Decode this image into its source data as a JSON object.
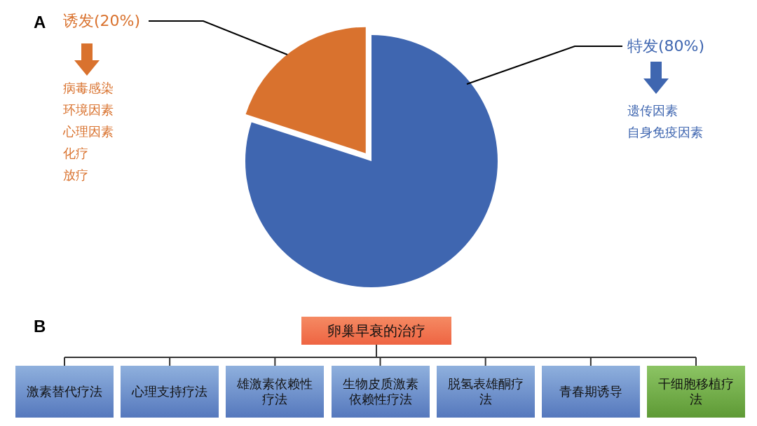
{
  "chart_data": [
    {
      "type": "pie",
      "categories": [
        "诱发(20%)",
        "特发(80%)"
      ],
      "values": [
        20,
        80
      ],
      "colors": [
        "#d9722e",
        "#3f66b0"
      ],
      "annotations": [
        "A",
        "病毒感染",
        "环境因素",
        "心理因素",
        "化疗",
        "放疗",
        "遗传因素",
        "自身免疫因素"
      ]
    },
    {
      "type": "other",
      "title": "卵巢早衰的治疗",
      "categories": [
        "激素替代疗法",
        "心理支持疗法",
        "雄激素依赖性疗法",
        "生物皮质激素依赖性疗法",
        "脱氢表雄酮疗法",
        "青春期诱导",
        "干细胞移植疗法"
      ],
      "annotations": [
        "B"
      ]
    }
  ]
}
